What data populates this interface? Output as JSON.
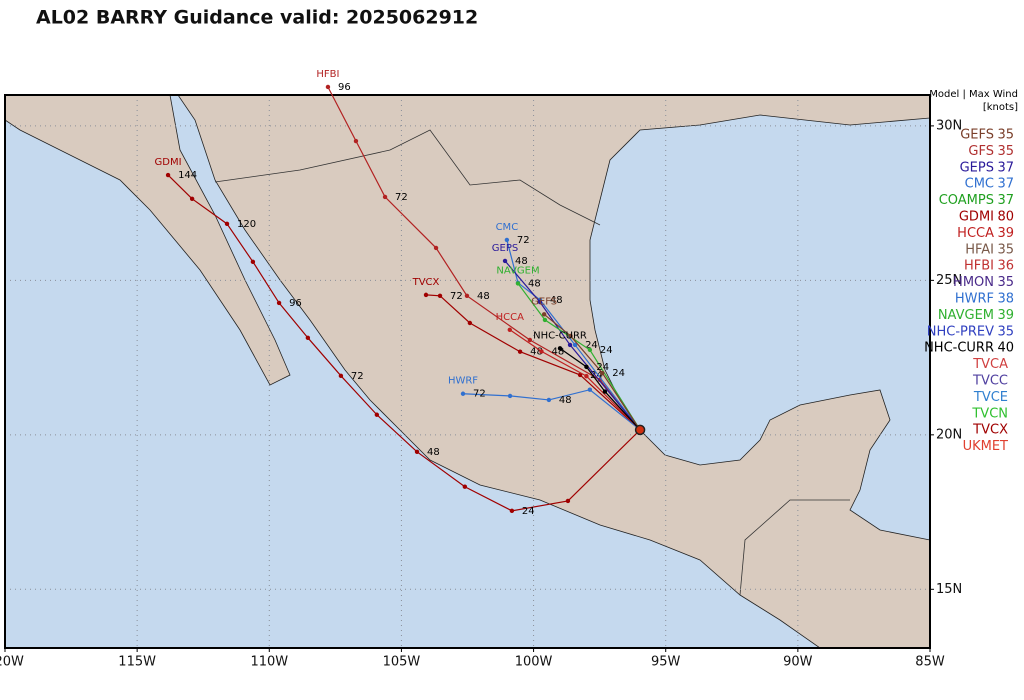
{
  "title": "AL02 BARRY Guidance valid: 2025062912",
  "map": {
    "lon_range": [
      -120,
      -85
    ],
    "lat_range": [
      13.1,
      31.0
    ],
    "lon_ticks": [
      {
        "value": -120,
        "label": "120W"
      },
      {
        "value": -115,
        "label": "115W"
      },
      {
        "value": -110,
        "label": "110W"
      },
      {
        "value": -105,
        "label": "105W"
      },
      {
        "value": -100,
        "label": "100W"
      },
      {
        "value": -95,
        "label": "95W"
      },
      {
        "value": -90,
        "label": "90W"
      },
      {
        "value": -85,
        "label": "85W"
      }
    ],
    "lat_ticks": [
      {
        "value": 30,
        "label": "30N"
      },
      {
        "value": 25,
        "label": "25N"
      },
      {
        "value": 20,
        "label": "20N"
      },
      {
        "value": 15,
        "label": "15N"
      }
    ],
    "current_position": {
      "lon": -95.97,
      "lat": 20.16
    }
  },
  "tracks": [
    {
      "model": "GDMI",
      "color": "#a00000",
      "points": [
        {
          "lon": -95.97,
          "lat": 20.16
        },
        {
          "lon": -98.7,
          "lat": 17.86
        },
        {
          "lon": -100.82,
          "lat": 17.54,
          "hour": 24
        },
        {
          "lon": -102.6,
          "lat": 18.32
        },
        {
          "lon": -104.41,
          "lat": 19.45,
          "hour": 48
        },
        {
          "lon": -105.93,
          "lat": 20.65
        },
        {
          "lon": -107.29,
          "lat": 21.91,
          "hour": 72
        },
        {
          "lon": -108.54,
          "lat": 23.14
        },
        {
          "lon": -109.63,
          "lat": 24.27,
          "hour": 96
        },
        {
          "lon": -110.62,
          "lat": 25.6
        },
        {
          "lon": -111.6,
          "lat": 26.83,
          "hour": 120
        },
        {
          "lon": -112.92,
          "lat": 27.64
        },
        {
          "lon": -113.83,
          "lat": 28.41,
          "hour": 144
        }
      ]
    },
    {
      "model": "HFBI",
      "color": "#b22222",
      "points": [
        {
          "lon": -95.97,
          "lat": 20.16
        },
        {
          "lon": -97.49,
          "lat": 21.78
        },
        {
          "lon": -100.14,
          "lat": 23.07
        },
        {
          "lon": -102.52,
          "lat": 24.5,
          "hour": 48
        },
        {
          "lon": -103.69,
          "lat": 26.05
        },
        {
          "lon": -105.62,
          "lat": 27.7,
          "hour": 72
        },
        {
          "lon": -106.72,
          "lat": 29.51
        },
        {
          "lon": -107.78,
          "lat": 31.26,
          "hour": 96
        }
      ]
    },
    {
      "model": "TVCX",
      "color": "#a00000",
      "points": [
        {
          "lon": -95.97,
          "lat": 20.16
        },
        {
          "lon": -98.24,
          "lat": 21.94,
          "hour": 24
        },
        {
          "lon": -100.51,
          "lat": 22.69,
          "hour": 48
        },
        {
          "lon": -102.41,
          "lat": 23.62
        },
        {
          "lon": -103.54,
          "lat": 24.5,
          "hour": 72
        },
        {
          "lon": -104.07,
          "lat": 24.53
        }
      ]
    },
    {
      "model": "HWRF",
      "color": "#3070d0",
      "points": [
        {
          "lon": -95.97,
          "lat": 20.16
        },
        {
          "lon": -97.87,
          "lat": 21.46
        },
        {
          "lon": -99.42,
          "lat": 21.13,
          "hour": 48
        },
        {
          "lon": -100.89,
          "lat": 21.26
        },
        {
          "lon": -102.67,
          "lat": 21.33,
          "hour": 72
        }
      ]
    },
    {
      "model": "CMC",
      "color": "#3070d0",
      "points": [
        {
          "lon": -95.97,
          "lat": 20.16
        },
        {
          "lon": -98.43,
          "lat": 22.91,
          "hour": 24
        },
        {
          "lon": -99.76,
          "lat": 24.37,
          "hour": 48
        },
        {
          "lon": -100.59,
          "lat": 24.92
        },
        {
          "lon": -101.01,
          "lat": 26.31,
          "hour": 72
        }
      ]
    },
    {
      "model": "GEPS",
      "color": "#2a1a9a",
      "points": [
        {
          "lon": -95.97,
          "lat": 20.16
        },
        {
          "lon": -98.62,
          "lat": 22.91
        },
        {
          "lon": -99.76,
          "lat": 24.3
        },
        {
          "lon": -101.08,
          "lat": 25.63,
          "hour": 48
        }
      ]
    },
    {
      "model": "NAVGEM",
      "color": "#30b030",
      "points": [
        {
          "lon": -95.97,
          "lat": 20.16
        },
        {
          "lon": -97.87,
          "lat": 22.75,
          "hour": 24
        },
        {
          "lon": -99.57,
          "lat": 23.72
        },
        {
          "lon": -100.59,
          "lat": 24.9,
          "hour": 48
        }
      ]
    },
    {
      "model": "HCCA",
      "color": "#c02020",
      "points": [
        {
          "lon": -95.97,
          "lat": 20.16
        },
        {
          "lon": -98.0,
          "lat": 21.9
        },
        {
          "lon": -99.7,
          "lat": 22.7,
          "hour": 48
        },
        {
          "lon": -100.9,
          "lat": 23.4
        }
      ]
    },
    {
      "model": "GEFS",
      "color": "#7a3f2a",
      "points": [
        {
          "lon": -95.97,
          "lat": 20.16
        },
        {
          "lon": -97.4,
          "lat": 22.0,
          "hour": 24
        },
        {
          "lon": -98.6,
          "lat": 23.2
        },
        {
          "lon": -99.6,
          "lat": 23.9
        }
      ]
    },
    {
      "model": "NHC-CURR",
      "color": "#000000",
      "points": [
        {
          "lon": -95.97,
          "lat": 20.16
        },
        {
          "lon": -97.3,
          "lat": 21.4
        },
        {
          "lon": -98.0,
          "lat": 22.2,
          "hour": 24
        },
        {
          "lon": -99.0,
          "lat": 22.8
        }
      ]
    }
  ],
  "legend": {
    "header": "Model | Max Wind",
    "unit": "[knots]",
    "entries": [
      {
        "name": "GEFS",
        "wind": 35,
        "color": "#7a3f2a"
      },
      {
        "name": "GFS",
        "wind": 35,
        "color": "#b03030"
      },
      {
        "name": "GEPS",
        "wind": 37,
        "color": "#2a1a9a"
      },
      {
        "name": "CMC",
        "wind": 37,
        "color": "#3070d0"
      },
      {
        "name": "COAMPS",
        "wind": 37,
        "color": "#20a020"
      },
      {
        "name": "GDMI",
        "wind": 80,
        "color": "#a00000"
      },
      {
        "name": "HCCA",
        "wind": 39,
        "color": "#c02020"
      },
      {
        "name": "HFAI",
        "wind": 35,
        "color": "#7a5a4a"
      },
      {
        "name": "HFBI",
        "wind": 36,
        "color": "#c03030"
      },
      {
        "name": "HMON",
        "wind": 35,
        "color": "#4a2a8a"
      },
      {
        "name": "HWRF",
        "wind": 38,
        "color": "#3070d0"
      },
      {
        "name": "NAVGEM",
        "wind": 39,
        "color": "#30b030"
      },
      {
        "name": "NHC-PREV",
        "wind": 35,
        "color": "#3040c0"
      },
      {
        "name": "NHC-CURR",
        "wind": 40,
        "color": "#000000"
      },
      {
        "name": "TVCA",
        "color": "#d04040"
      },
      {
        "name": "TVCC",
        "color": "#5040a0"
      },
      {
        "name": "TVCE",
        "color": "#3080d0"
      },
      {
        "name": "TVCN",
        "color": "#30c030"
      },
      {
        "name": "TVCX",
        "color": "#a00000"
      },
      {
        "name": "UKMET",
        "color": "#e04030"
      }
    ]
  }
}
